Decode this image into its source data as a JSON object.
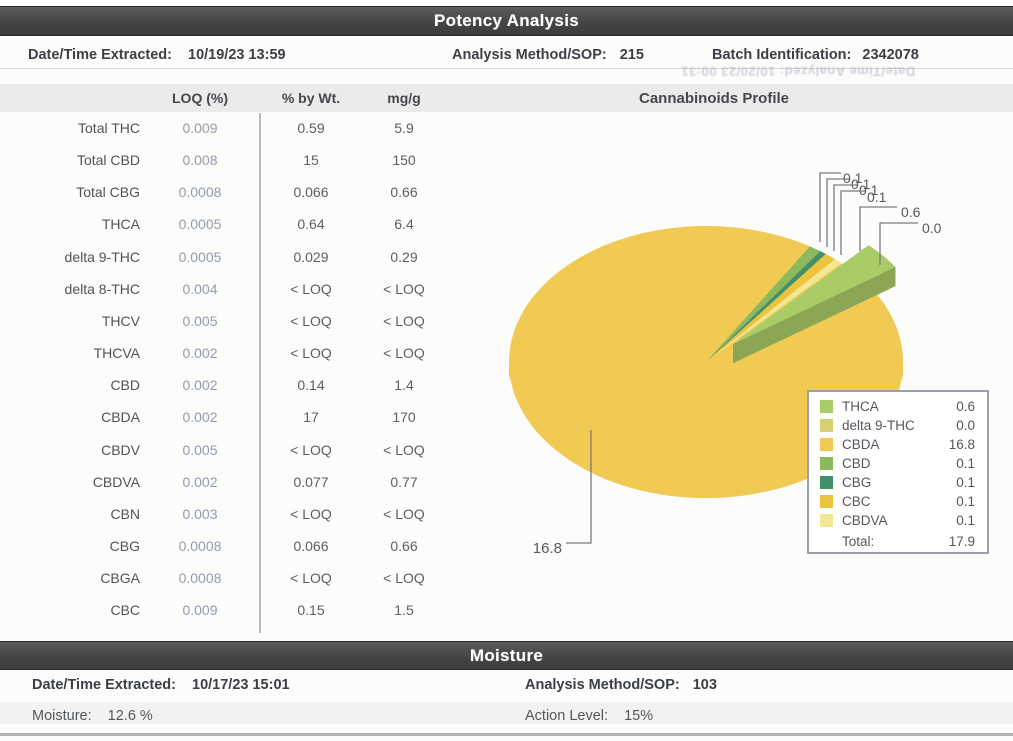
{
  "header": {
    "bar_title": "Potency Analysis",
    "date_label": "Date/Time Extracted:",
    "date_value": "10/19/23  13:59",
    "method_label": "Analysis Method/SOP:",
    "method_value": "215",
    "batch_label": "Batch Identification:",
    "batch_value": "2342078",
    "bleed_text": "Date/Time Analyzed:  10/20/23 00:31"
  },
  "potency": {
    "columns": [
      "LOQ (%)",
      "% by Wt.",
      "mg/g"
    ],
    "rows": [
      {
        "analyte": "Total THC",
        "loq": "0.009",
        "wt": "0.59",
        "mgg": "5.9"
      },
      {
        "analyte": "Total CBD",
        "loq": "0.008",
        "wt": "15",
        "mgg": "150"
      },
      {
        "analyte": "Total CBG",
        "loq": "0.0008",
        "wt": "0.066",
        "mgg": "0.66"
      },
      {
        "analyte": "THCA",
        "loq": "0.0005",
        "wt": "0.64",
        "mgg": "6.4"
      },
      {
        "analyte": "delta 9-THC",
        "loq": "0.0005",
        "wt": "0.029",
        "mgg": "0.29"
      },
      {
        "analyte": "delta 8-THC",
        "loq": "0.004",
        "wt": "< LOQ",
        "mgg": "< LOQ"
      },
      {
        "analyte": "THCV",
        "loq": "0.005",
        "wt": "< LOQ",
        "mgg": "< LOQ"
      },
      {
        "analyte": "THCVA",
        "loq": "0.002",
        "wt": "< LOQ",
        "mgg": "< LOQ"
      },
      {
        "analyte": "CBD",
        "loq": "0.002",
        "wt": "0.14",
        "mgg": "1.4"
      },
      {
        "analyte": "CBDA",
        "loq": "0.002",
        "wt": "17",
        "mgg": "170"
      },
      {
        "analyte": "CBDV",
        "loq": "0.005",
        "wt": "< LOQ",
        "mgg": "< LOQ"
      },
      {
        "analyte": "CBDVA",
        "loq": "0.002",
        "wt": "0.077",
        "mgg": "0.77"
      },
      {
        "analyte": "CBN",
        "loq": "0.003",
        "wt": "< LOQ",
        "mgg": "< LOQ"
      },
      {
        "analyte": "CBG",
        "loq": "0.0008",
        "wt": "0.066",
        "mgg": "0.66"
      },
      {
        "analyte": "CBGA",
        "loq": "0.0008",
        "wt": "< LOQ",
        "mgg": "< LOQ"
      },
      {
        "analyte": "CBC",
        "loq": "0.009",
        "wt": "0.15",
        "mgg": "1.5"
      }
    ]
  },
  "chart_data": {
    "type": "pie",
    "style": "3d-exploded-wedge",
    "title": "Cannabinoids Profile",
    "legend_position": "bottom-right",
    "total_label": "Total:",
    "total": 17.9,
    "total_display": "17.9",
    "slices": [
      {
        "name": "THCA",
        "value": 0.6,
        "display": "0.6",
        "color": "#a9cc66"
      },
      {
        "name": "delta 9-THC",
        "value": 0.0,
        "display": "0.0",
        "color": "#d6d170"
      },
      {
        "name": "CBDA",
        "value": 16.8,
        "display": "16.8",
        "color": "#f0ca52"
      },
      {
        "name": "CBD",
        "value": 0.1,
        "display": "0.1",
        "color": "#8cb95e"
      },
      {
        "name": "CBG",
        "value": 0.1,
        "display": "0.1",
        "color": "#41906a"
      },
      {
        "name": "CBC",
        "value": 0.1,
        "display": "0.1",
        "color": "#ecc33e"
      },
      {
        "name": "CBDVA",
        "value": 0.1,
        "display": "0.1",
        "color": "#f3e795"
      }
    ],
    "callouts": [
      "0.1",
      "0.1",
      "0.1",
      "0.1",
      "0.6",
      "0.0",
      "16.8"
    ]
  },
  "moisture": {
    "bar_title": "Moisture",
    "date_label": "Date/Time Extracted:",
    "date_value": "10/17/23  15:01",
    "method_label": "Analysis Method/SOP:",
    "method_value": "103",
    "moisture_label": "Moisture:",
    "moisture_value": "12.6 %",
    "action_label": "Action Level:",
    "action_value": "15%"
  }
}
